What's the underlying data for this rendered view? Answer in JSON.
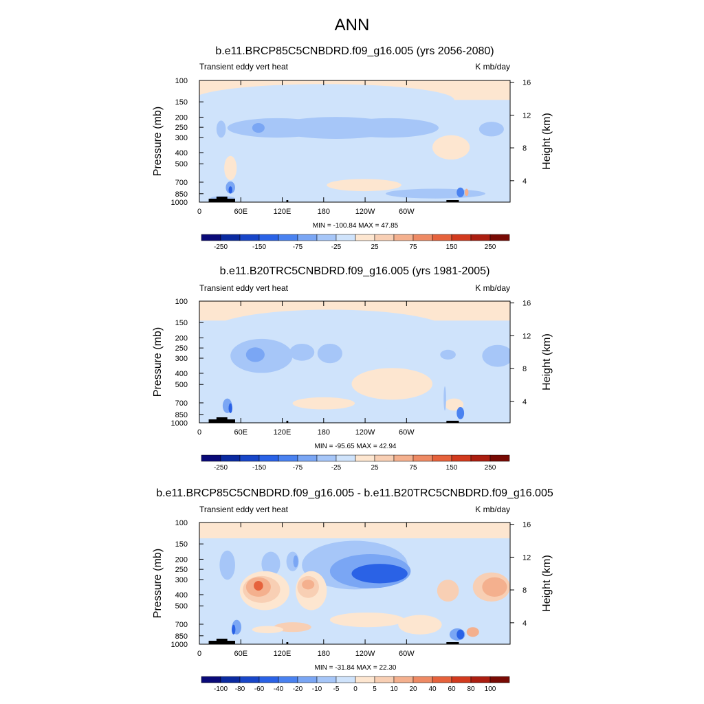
{
  "main_title": "ANN",
  "chart_data": [
    {
      "type": "heatmap",
      "title": "b.e11.BRCP85C5CNBDRD.f09_g16.005 (yrs 2056-2080)",
      "left_string": "Transient eddy vert heat",
      "right_string": "K mb/day",
      "ylabel_left": "Pressure (mb)",
      "ylabel_right": "Height (km)",
      "x_ticks": [
        "0",
        "60E",
        "120E",
        "180",
        "120W",
        "60W"
      ],
      "pressure_ticks": [
        "100",
        "150",
        "200",
        "250",
        "300",
        "400",
        "500",
        "700",
        "850",
        "1000"
      ],
      "height_ticks": [
        "16",
        "12",
        "8",
        "4"
      ],
      "stats": "MIN = -100.84  MAX =  47.85",
      "colorbar_labels": [
        "-250",
        "-150",
        "-75",
        "-25",
        "25",
        "75",
        "150",
        "250"
      ]
    },
    {
      "type": "heatmap",
      "title": "b.e11.B20TRC5CNBDRD.f09_g16.005 (yrs 1981-2005)",
      "left_string": "Transient eddy vert heat",
      "right_string": "K mb/day",
      "ylabel_left": "Pressure (mb)",
      "ylabel_right": "Height (km)",
      "x_ticks": [
        "0",
        "60E",
        "120E",
        "180",
        "120W",
        "60W"
      ],
      "pressure_ticks": [
        "100",
        "150",
        "200",
        "250",
        "300",
        "400",
        "500",
        "700",
        "850",
        "1000"
      ],
      "height_ticks": [
        "16",
        "12",
        "8",
        "4"
      ],
      "stats": "MIN = -95.65  MAX =  42.94",
      "colorbar_labels": [
        "-250",
        "-150",
        "-75",
        "-25",
        "25",
        "75",
        "150",
        "250"
      ]
    },
    {
      "type": "heatmap",
      "title": "b.e11.BRCP85C5CNBDRD.f09_g16.005 - b.e11.B20TRC5CNBDRD.f09_g16.005",
      "left_string": "Transient eddy vert heat",
      "right_string": "K mb/day",
      "ylabel_left": "Pressure (mb)",
      "ylabel_right": "Height (km)",
      "x_ticks": [
        "0",
        "60E",
        "120E",
        "180",
        "120W",
        "60W"
      ],
      "pressure_ticks": [
        "100",
        "150",
        "200",
        "250",
        "300",
        "400",
        "500",
        "700",
        "850",
        "1000"
      ],
      "height_ticks": [
        "16",
        "12",
        "8",
        "4"
      ],
      "stats": "MIN = -31.84  MAX =  22.30",
      "colorbar_labels": [
        "-100",
        "-80",
        "-60",
        "-40",
        "-20",
        "-10",
        "-5",
        "0",
        "5",
        "10",
        "20",
        "40",
        "60",
        "80",
        "100"
      ]
    }
  ],
  "colors": {
    "palette": [
      "#0a0a78",
      "#0a2aa0",
      "#1846c8",
      "#2a62e6",
      "#4a82f0",
      "#7aa6f4",
      "#a6c6f8",
      "#cfe3fb",
      "#fde6d0",
      "#f8cfb4",
      "#f4b08e",
      "#ee8a64",
      "#e6623c",
      "#d23a1e",
      "#ab1e10",
      "#780a04"
    ],
    "topography": "#000000"
  }
}
